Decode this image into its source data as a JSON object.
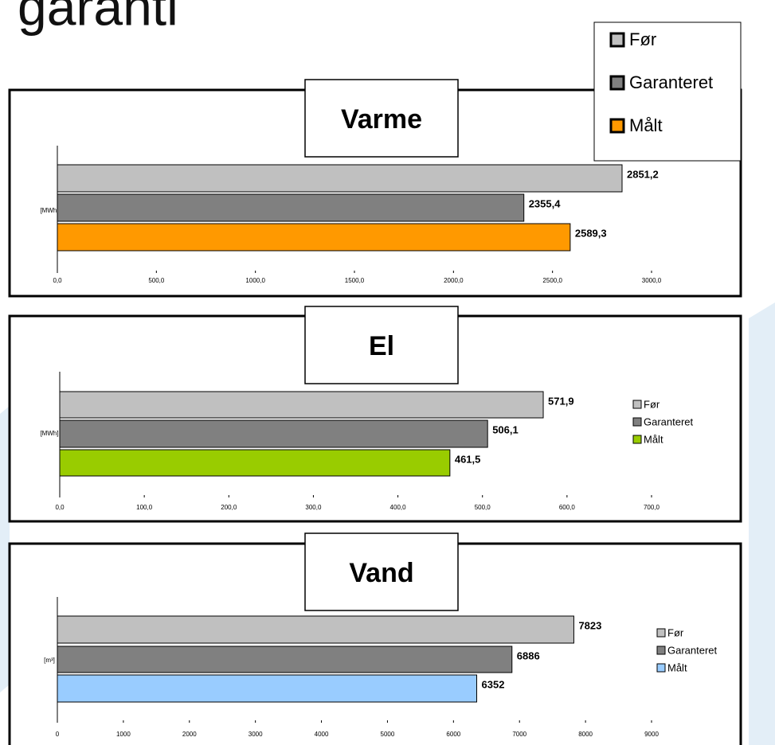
{
  "heading": "garanti",
  "chart_data": [
    {
      "type": "bar",
      "orientation": "horizontal",
      "title": "Varme",
      "ylabel": "[MWh]",
      "legend": "box",
      "series": [
        {
          "name": "Før",
          "color": "#c0c0c0",
          "values": [
            2851.2
          ],
          "value_labels": [
            "2851,2"
          ]
        },
        {
          "name": "Garanteret",
          "color": "#808080",
          "values": [
            2355.4
          ],
          "value_labels": [
            "2355,4"
          ]
        },
        {
          "name": "Målt",
          "color": "#ff9900",
          "values": [
            2589.3
          ],
          "value_labels": [
            "2589,3"
          ]
        }
      ],
      "xlim": [
        0,
        3000
      ],
      "xticks": [
        {
          "value": 0,
          "label": "0,0"
        },
        {
          "value": 500,
          "label": "500,0"
        },
        {
          "value": 1000,
          "label": "1000,0"
        },
        {
          "value": 1500,
          "label": "1500,0"
        },
        {
          "value": 2000,
          "label": "2000,0"
        },
        {
          "value": 2500,
          "label": "2500,0"
        },
        {
          "value": 3000,
          "label": "3000,0"
        }
      ]
    },
    {
      "type": "bar",
      "orientation": "horizontal",
      "title": "El",
      "ylabel": "[MWh]",
      "legend": "right",
      "series": [
        {
          "name": "Før",
          "color": "#c0c0c0",
          "values": [
            571.9
          ],
          "value_labels": [
            "571,9"
          ]
        },
        {
          "name": "Garanteret",
          "color": "#808080",
          "values": [
            506.1
          ],
          "value_labels": [
            "506,1"
          ]
        },
        {
          "name": "Målt",
          "color": "#99cc00",
          "values": [
            461.5
          ],
          "value_labels": [
            "461,5"
          ]
        }
      ],
      "xlim": [
        0,
        700
      ],
      "xticks": [
        {
          "value": 0,
          "label": "0,0"
        },
        {
          "value": 100,
          "label": "100,0"
        },
        {
          "value": 200,
          "label": "200,0"
        },
        {
          "value": 300,
          "label": "300,0"
        },
        {
          "value": 400,
          "label": "400,0"
        },
        {
          "value": 500,
          "label": "500,0"
        },
        {
          "value": 600,
          "label": "600,0"
        },
        {
          "value": 700,
          "label": "700,0"
        }
      ]
    },
    {
      "type": "bar",
      "orientation": "horizontal",
      "title": "Vand",
      "ylabel": "[m³]",
      "legend": "right",
      "series": [
        {
          "name": "Før",
          "color": "#c0c0c0",
          "values": [
            7823
          ]
        },
        {
          "name": "Garanteret",
          "color": "#808080",
          "values": [
            6886
          ]
        },
        {
          "name": "Målt",
          "color": "#99ccff",
          "values": [
            6352
          ]
        }
      ],
      "xlim": [
        0,
        9000
      ],
      "xticks": [
        0,
        1000,
        2000,
        3000,
        4000,
        5000,
        6000,
        7000,
        8000,
        9000
      ]
    }
  ]
}
